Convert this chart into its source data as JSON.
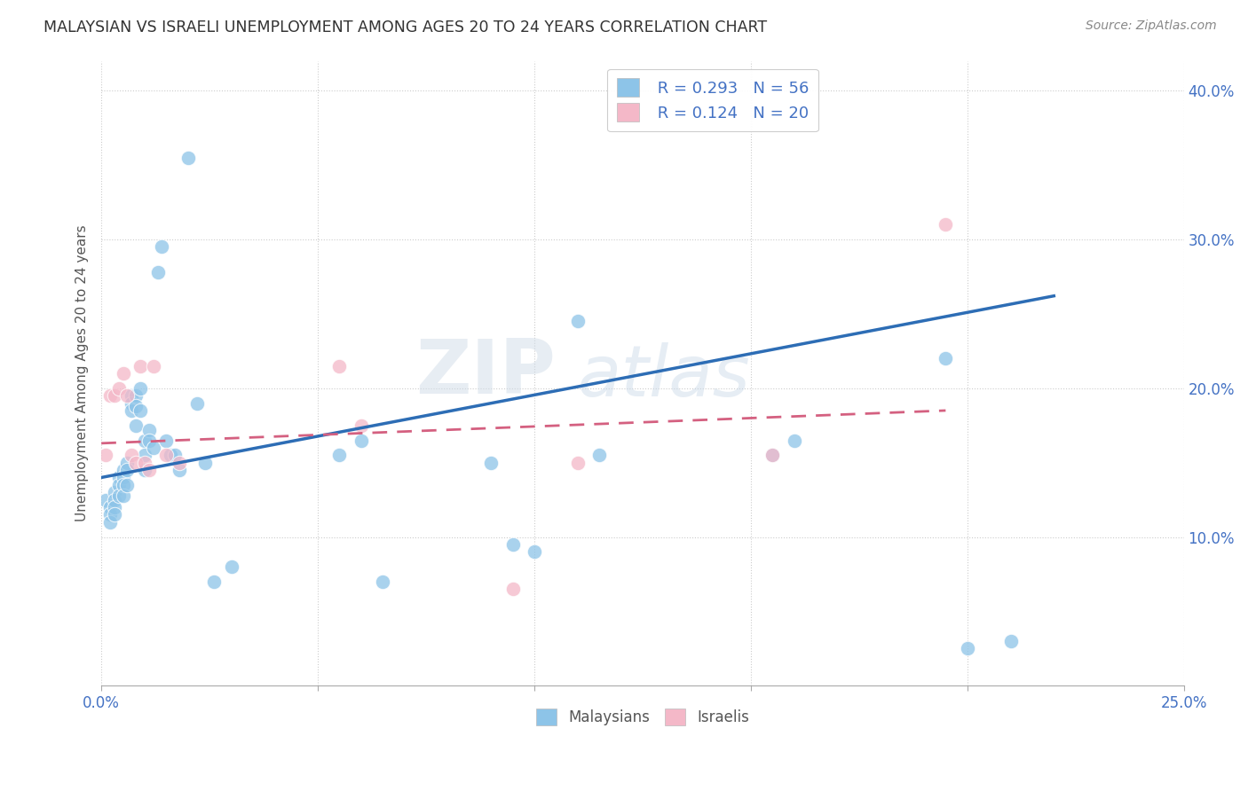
{
  "title": "MALAYSIAN VS ISRAELI UNEMPLOYMENT AMONG AGES 20 TO 24 YEARS CORRELATION CHART",
  "source": "Source: ZipAtlas.com",
  "ylabel": "Unemployment Among Ages 20 to 24 years",
  "xlim": [
    0.0,
    0.25
  ],
  "ylim": [
    0.0,
    0.42
  ],
  "blue_color": "#8dc4e8",
  "pink_color": "#f4b8c8",
  "line_blue": "#2d6db5",
  "line_pink": "#d46080",
  "watermark_zip": "ZIP",
  "watermark_atlas": "atlas",
  "malaysian_x": [
    0.001,
    0.002,
    0.002,
    0.002,
    0.003,
    0.003,
    0.003,
    0.003,
    0.004,
    0.004,
    0.004,
    0.005,
    0.005,
    0.005,
    0.005,
    0.006,
    0.006,
    0.006,
    0.007,
    0.007,
    0.007,
    0.008,
    0.008,
    0.008,
    0.009,
    0.009,
    0.01,
    0.01,
    0.01,
    0.011,
    0.011,
    0.012,
    0.013,
    0.014,
    0.015,
    0.016,
    0.017,
    0.018,
    0.02,
    0.022,
    0.024,
    0.026,
    0.03,
    0.055,
    0.06,
    0.065,
    0.09,
    0.095,
    0.1,
    0.11,
    0.115,
    0.155,
    0.16,
    0.195,
    0.2,
    0.21
  ],
  "malaysian_y": [
    0.125,
    0.12,
    0.115,
    0.11,
    0.13,
    0.125,
    0.12,
    0.115,
    0.14,
    0.135,
    0.128,
    0.145,
    0.14,
    0.135,
    0.128,
    0.15,
    0.145,
    0.135,
    0.195,
    0.19,
    0.185,
    0.195,
    0.188,
    0.175,
    0.2,
    0.185,
    0.165,
    0.155,
    0.145,
    0.172,
    0.165,
    0.16,
    0.278,
    0.295,
    0.165,
    0.155,
    0.155,
    0.145,
    0.355,
    0.19,
    0.15,
    0.07,
    0.08,
    0.155,
    0.165,
    0.07,
    0.15,
    0.095,
    0.09,
    0.245,
    0.155,
    0.155,
    0.165,
    0.22,
    0.025,
    0.03
  ],
  "israeli_x": [
    0.001,
    0.002,
    0.003,
    0.004,
    0.005,
    0.006,
    0.007,
    0.008,
    0.009,
    0.01,
    0.011,
    0.012,
    0.015,
    0.018,
    0.055,
    0.06,
    0.095,
    0.11,
    0.155,
    0.195
  ],
  "israeli_y": [
    0.155,
    0.195,
    0.195,
    0.2,
    0.21,
    0.195,
    0.155,
    0.15,
    0.215,
    0.15,
    0.145,
    0.215,
    0.155,
    0.15,
    0.215,
    0.175,
    0.065,
    0.15,
    0.155,
    0.31
  ],
  "blue_trendline_x0": 0.0,
  "blue_trendline_y0": 0.14,
  "blue_trendline_x1": 0.22,
  "blue_trendline_y1": 0.262,
  "pink_trendline_x0": 0.0,
  "pink_trendline_y0": 0.163,
  "pink_trendline_x1": 0.195,
  "pink_trendline_y1": 0.185
}
